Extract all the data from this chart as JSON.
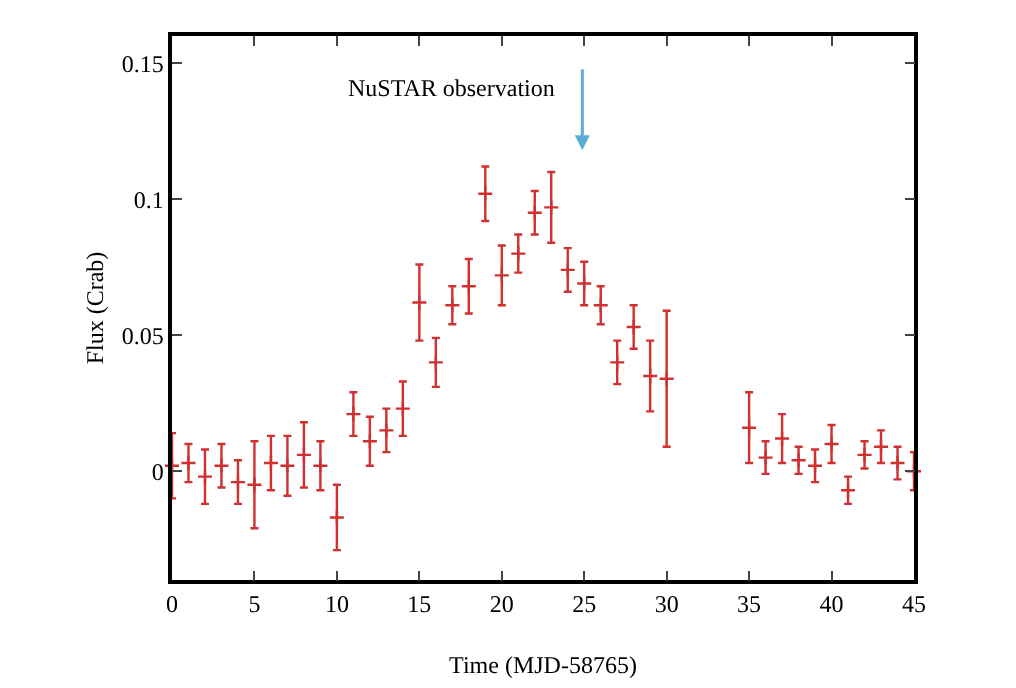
{
  "chart_data": {
    "type": "scatter",
    "xlabel": "Time (MJD-58765)",
    "ylabel": "Flux (Crab)",
    "x": [
      0,
      1,
      2,
      3,
      4,
      5,
      6,
      7,
      8,
      9,
      10,
      11,
      12,
      13,
      14,
      15,
      16,
      17,
      18,
      19,
      20,
      21,
      22,
      23,
      24,
      25,
      26,
      27,
      28,
      29,
      30,
      35,
      36,
      37,
      38,
      39,
      40,
      41,
      42,
      43,
      44,
      45
    ],
    "series": [
      {
        "color": "#d03030",
        "values": [
          0.002,
          0.003,
          -0.002,
          0.002,
          -0.004,
          -0.005,
          0.003,
          0.002,
          0.006,
          0.002,
          -0.017,
          0.021,
          0.011,
          0.015,
          0.023,
          0.062,
          0.04,
          0.061,
          0.068,
          0.102,
          0.072,
          0.08,
          0.095,
          0.097,
          0.074,
          0.069,
          0.061,
          0.04,
          0.053,
          0.035,
          0.034,
          0.016,
          0.005,
          0.012,
          0.004,
          0.002,
          0.01,
          -0.007,
          0.006,
          0.009,
          0.003,
          0.0
        ],
        "errors": [
          0.012,
          0.007,
          0.01,
          0.008,
          0.008,
          0.016,
          0.01,
          0.011,
          0.012,
          0.009,
          0.012,
          0.008,
          0.009,
          0.008,
          0.01,
          0.014,
          0.009,
          0.007,
          0.01,
          0.01,
          0.011,
          0.007,
          0.008,
          0.013,
          0.008,
          0.008,
          0.007,
          0.008,
          0.008,
          0.013,
          0.025,
          0.013,
          0.006,
          0.009,
          0.005,
          0.006,
          0.007,
          0.005,
          0.005,
          0.006,
          0.006,
          0.007
        ]
      }
    ],
    "marker": "cross",
    "grid": false,
    "xlim": [
      0,
      45
    ],
    "xticks": [
      0,
      5,
      10,
      15,
      20,
      25,
      30,
      35,
      40,
      45
    ],
    "ylim": [
      -0.04,
      0.16
    ],
    "yticks": [
      0,
      0.05,
      0.1,
      0.15
    ],
    "annotations": [
      "NuSTAR observation"
    ]
  }
}
